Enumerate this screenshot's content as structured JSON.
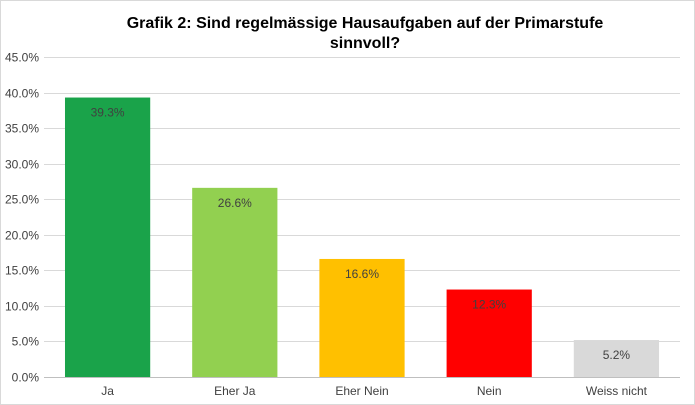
{
  "chart_data": {
    "type": "bar",
    "title_line1": "Grafik 2: Sind regelmässige Hausaufgaben auf der Primarstufe",
    "title_line2": "sinnvoll?",
    "xlabel": "",
    "ylabel": "",
    "categories": [
      "Ja",
      "Eher Ja",
      "Eher Nein",
      "Nein",
      "Weiss nicht"
    ],
    "values": [
      39.3,
      26.6,
      16.6,
      12.3,
      5.2
    ],
    "data_labels": [
      "39.3%",
      "26.6%",
      "16.6%",
      "12.3%",
      "5.2%"
    ],
    "colors": [
      "#1aa34a",
      "#92d050",
      "#ffc000",
      "#ff0000",
      "#d9d9d9"
    ],
    "ylim": [
      0,
      45
    ],
    "yticks": [
      0,
      5,
      10,
      15,
      20,
      25,
      30,
      35,
      40,
      45
    ],
    "ytick_labels": [
      "0.0%",
      "5.0%",
      "10.0%",
      "15.0%",
      "20.0%",
      "25.0%",
      "30.0%",
      "35.0%",
      "40.0%",
      "45.0%"
    ],
    "grid": true,
    "legend": "none"
  }
}
